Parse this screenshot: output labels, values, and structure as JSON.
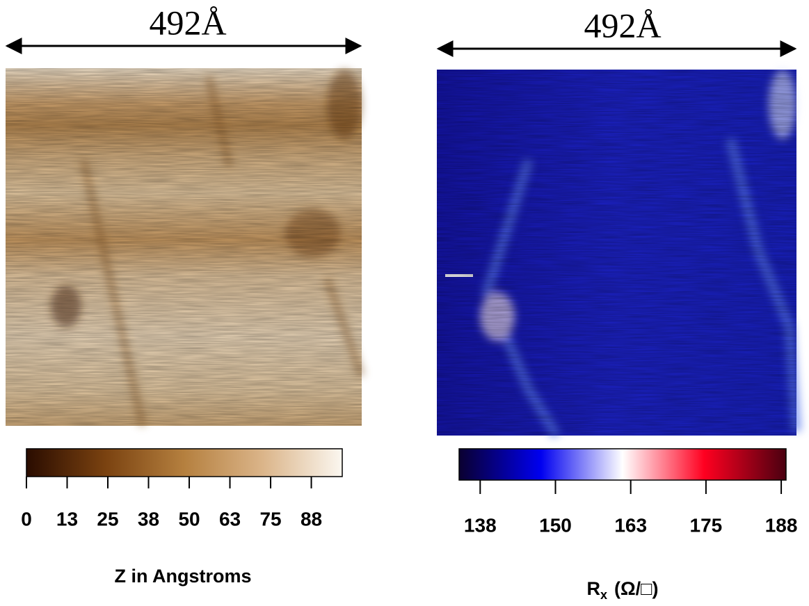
{
  "panels": [
    {
      "scale_label": "492Å",
      "colorbar": {
        "label": "Z in Angstroms",
        "lim": [
          0,
          97
        ],
        "ticks": [
          {
            "value": 0,
            "label": "0"
          },
          {
            "value": 12.5,
            "label": "13"
          },
          {
            "value": 25,
            "label": "25"
          },
          {
            "value": 37.5,
            "label": "38"
          },
          {
            "value": 50,
            "label": "50"
          },
          {
            "value": 62.5,
            "label": "63"
          },
          {
            "value": 75,
            "label": "75"
          },
          {
            "value": 87.5,
            "label": "88"
          }
        ],
        "colors": [
          "#2a0c00",
          "#7a4210",
          "#b5803f",
          "#dbb58a",
          "#fbf7f0"
        ]
      }
    },
    {
      "scale_label": "492Å",
      "colorbar": {
        "label": "R",
        "label_subscript": "x",
        "label_unit": "(Ω/□)",
        "lim": [
          134,
          188.3
        ],
        "ticks": [
          {
            "value": 137.5,
            "label": "138"
          },
          {
            "value": 150,
            "label": "150"
          },
          {
            "value": 162.5,
            "label": "163"
          },
          {
            "value": 175,
            "label": "175"
          },
          {
            "value": 187.5,
            "label": "188"
          }
        ],
        "colors": [
          "#0a0030",
          "#0000f0",
          "#ffffff",
          "#ff0020",
          "#4a0010"
        ]
      }
    }
  ]
}
